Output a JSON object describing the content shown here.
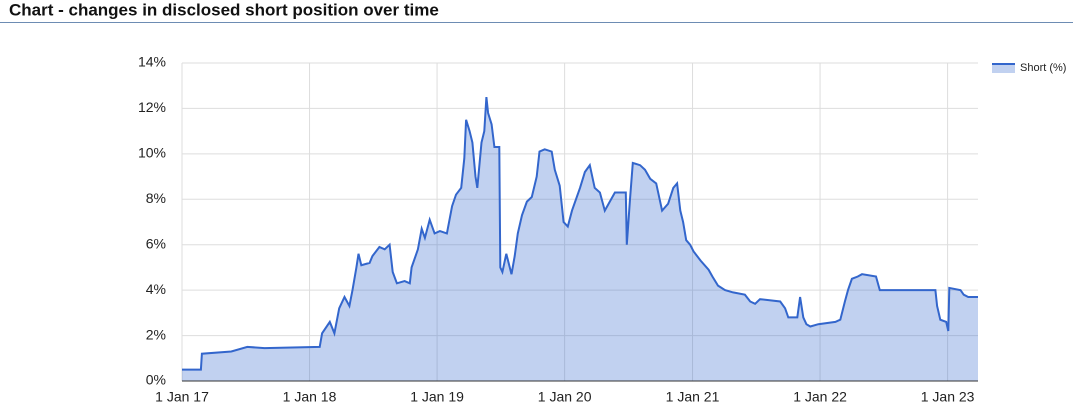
{
  "chart_data": {
    "type": "area",
    "title": "Chart - changes in disclosed short position over time",
    "legend": "right",
    "grid": true,
    "x": [
      "2017-01-01",
      "2017-02-24",
      "2017-02-27",
      "2017-05-22",
      "2017-07-07",
      "2017-08-25",
      "2018-01-30",
      "2018-02-06",
      "2018-02-28",
      "2018-03-13",
      "2018-03-27",
      "2018-04-11",
      "2018-04-25",
      "2018-05-04",
      "2018-05-15",
      "2018-05-21",
      "2018-05-29",
      "2018-06-22",
      "2018-06-30",
      "2018-07-20",
      "2018-08-04",
      "2018-08-18",
      "2018-08-27",
      "2018-09-08",
      "2018-09-30",
      "2018-10-15",
      "2018-10-20",
      "2018-11-07",
      "2018-11-18",
      "2018-11-27",
      "2018-12-11",
      "2018-12-25",
      "2019-01-09",
      "2019-01-29",
      "2019-02-13",
      "2019-02-24",
      "2019-03-11",
      "2019-03-20",
      "2019-03-25",
      "2019-04-04",
      "2019-04-12",
      "2019-04-21",
      "2019-04-26",
      "2019-05-08",
      "2019-05-16",
      "2019-05-22",
      "2019-05-27",
      "2019-06-06",
      "2019-06-14",
      "2019-06-28",
      "2019-07-01",
      "2019-07-07",
      "2019-07-18",
      "2019-08-02",
      "2019-08-11",
      "2019-08-20",
      "2019-09-01",
      "2019-09-15",
      "2019-09-29",
      "2019-10-13",
      "2019-10-21",
      "2019-11-05",
      "2019-11-25",
      "2019-12-04",
      "2019-12-18",
      "2019-12-29",
      "2020-01-10",
      "2020-01-22",
      "2020-02-14",
      "2020-02-28",
      "2020-03-13",
      "2020-03-27",
      "2020-04-11",
      "2020-04-25",
      "2020-05-24",
      "2020-06-24",
      "2020-06-27",
      "2020-07-06",
      "2020-07-14",
      "2020-08-04",
      "2020-08-18",
      "2020-09-02",
      "2020-09-19",
      "2020-10-06",
      "2020-10-23",
      "2020-11-07",
      "2020-11-18",
      "2020-11-27",
      "2020-12-05",
      "2020-12-14",
      "2020-12-25",
      "2021-01-04",
      "2021-01-24",
      "2021-02-16",
      "2021-02-27",
      "2021-03-15",
      "2021-04-04",
      "2021-04-27",
      "2021-05-31",
      "2021-06-15",
      "2021-06-29",
      "2021-07-13",
      "2021-09-09",
      "2021-09-23",
      "2021-10-02",
      "2021-10-28",
      "2021-11-05",
      "2021-11-14",
      "2021-11-23",
      "2021-12-04",
      "2021-12-27",
      "2022-02-14",
      "2022-02-28",
      "2022-03-13",
      "2022-03-22",
      "2022-04-02",
      "2022-04-19",
      "2022-05-01",
      "2022-06-10",
      "2022-06-21",
      "2022-11-27",
      "2022-12-02",
      "2022-12-11",
      "2022-12-28",
      "2023-01-03",
      "2023-01-06",
      "2023-02-07",
      "2023-02-16",
      "2023-03-01",
      "2023-03-29"
    ],
    "series": [
      {
        "name": "Short (%)",
        "color": "#3366cc",
        "values": [
          0.5,
          0.5,
          1.2,
          1.3,
          1.5,
          1.45,
          1.5,
          2.1,
          2.6,
          2.1,
          3.2,
          3.7,
          3.3,
          4.0,
          5.0,
          5.6,
          5.1,
          5.2,
          5.5,
          5.9,
          5.8,
          6.0,
          4.8,
          4.3,
          4.4,
          4.3,
          5.0,
          5.8,
          6.7,
          6.3,
          7.1,
          6.5,
          6.6,
          6.5,
          7.7,
          8.2,
          8.5,
          9.8,
          11.5,
          11.0,
          10.5,
          9.0,
          8.5,
          10.5,
          11.0,
          12.5,
          11.8,
          11.3,
          10.3,
          10.3,
          5.0,
          4.8,
          5.6,
          4.7,
          5.5,
          6.5,
          7.3,
          7.9,
          8.1,
          9.0,
          10.1,
          10.2,
          10.1,
          9.3,
          8.6,
          7.0,
          6.8,
          7.5,
          8.5,
          9.2,
          9.5,
          8.5,
          8.3,
          7.5,
          8.3,
          8.3,
          6.0,
          8.0,
          9.6,
          9.5,
          9.3,
          8.9,
          8.7,
          7.5,
          7.8,
          8.5,
          8.7,
          7.5,
          7.0,
          6.2,
          6.0,
          5.7,
          5.3,
          4.9,
          4.6,
          4.2,
          4.0,
          3.9,
          3.8,
          3.5,
          3.4,
          3.6,
          3.5,
          3.2,
          2.8,
          2.8,
          3.7,
          2.8,
          2.5,
          2.4,
          2.5,
          2.6,
          2.7,
          3.5,
          4.0,
          4.5,
          4.6,
          4.7,
          4.6,
          4.0,
          4.0,
          3.3,
          2.7,
          2.6,
          2.2,
          4.1,
          4.0,
          3.8,
          3.7,
          3.7
        ]
      }
    ],
    "xlim": [
      "2017-01-01",
      "2023-03-29"
    ],
    "xticks": [
      {
        "value": "2017-01-01",
        "label": "1 Jan 17"
      },
      {
        "value": "2018-01-01",
        "label": "1 Jan 18"
      },
      {
        "value": "2019-01-01",
        "label": "1 Jan 19"
      },
      {
        "value": "2020-01-01",
        "label": "1 Jan 20"
      },
      {
        "value": "2021-01-01",
        "label": "1 Jan 21"
      },
      {
        "value": "2022-01-01",
        "label": "1 Jan 22"
      },
      {
        "value": "2023-01-01",
        "label": "1 Jan 23"
      }
    ],
    "ylim": [
      0,
      14
    ],
    "yticks": [
      {
        "value": 0,
        "label": "0%"
      },
      {
        "value": 2,
        "label": "2%"
      },
      {
        "value": 4,
        "label": "4%"
      },
      {
        "value": 6,
        "label": "6%"
      },
      {
        "value": 8,
        "label": "8%"
      },
      {
        "value": 10,
        "label": "10%"
      },
      {
        "value": 12,
        "label": "12%"
      },
      {
        "value": 14,
        "label": "14%"
      }
    ]
  }
}
